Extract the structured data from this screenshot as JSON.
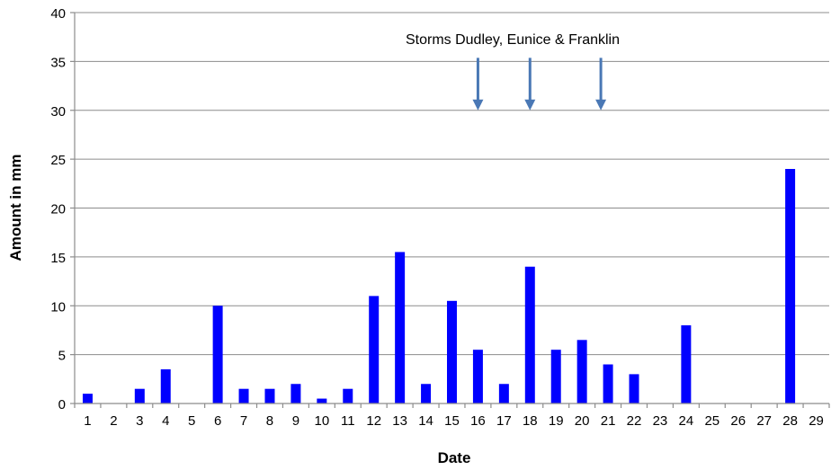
{
  "chart_data": {
    "type": "bar",
    "title": "",
    "xlabel": "Date",
    "ylabel": "Amount in mm",
    "ylim": [
      0,
      40
    ],
    "yticks": [
      0,
      5,
      10,
      15,
      20,
      25,
      30,
      35,
      40
    ],
    "grid": true,
    "legend": "none",
    "bar_color": "#0000ff",
    "categories": [
      "1",
      "2",
      "3",
      "4",
      "5",
      "6",
      "7",
      "8",
      "9",
      "10",
      "11",
      "12",
      "13",
      "14",
      "15",
      "16",
      "17",
      "18",
      "19",
      "20",
      "21",
      "22",
      "23",
      "24",
      "25",
      "26",
      "27",
      "28",
      "29"
    ],
    "values": [
      1,
      0,
      1.5,
      3.5,
      0,
      10,
      1.5,
      1.5,
      2,
      0.5,
      1.5,
      11,
      15.5,
      2,
      10.5,
      5.5,
      2,
      14,
      5.5,
      6.5,
      4,
      3,
      0,
      8,
      0,
      0,
      0,
      24,
      0
    ],
    "annotation": {
      "text": "Storms Dudley, Eunice & Franklin",
      "arrow_dates": [
        "16",
        "18",
        "21"
      ],
      "arrow_from": 35,
      "arrow_to": 30,
      "arrow_color": "#4a78b5"
    }
  }
}
